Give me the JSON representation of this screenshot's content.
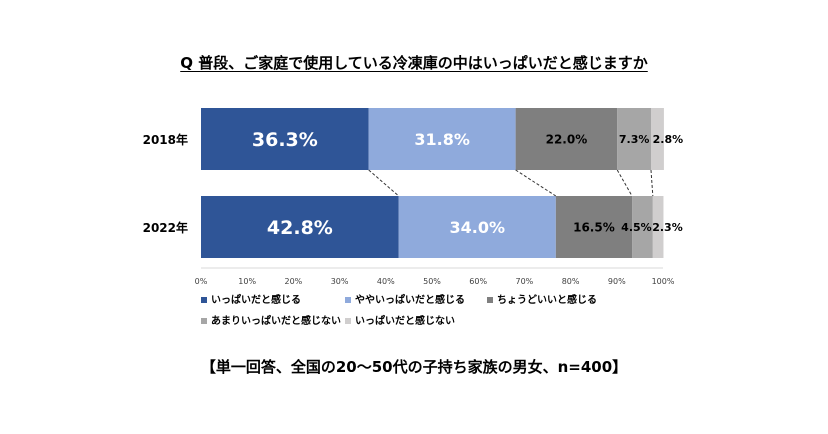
{
  "chart_data": {
    "type": "bar",
    "orientation": "horizontal",
    "stacked": true,
    "title": "Q 普段、ご家庭で使用している冷凍庫の中はいっぱいだと感じますか",
    "categories": [
      "2018年",
      "2022年"
    ],
    "series": [
      {
        "name": "いっぱいだと感じる",
        "values": [
          36.3,
          42.8
        ],
        "color": "#2f5597",
        "labels": [
          "36.3%",
          "42.8%"
        ]
      },
      {
        "name": "ややいっぱいだと感じる",
        "values": [
          31.8,
          34.0
        ],
        "color": "#8faadc",
        "labels": [
          "31.8%",
          "34.0%"
        ]
      },
      {
        "name": "ちょうどいいと感じる",
        "values": [
          22.0,
          16.5
        ],
        "color": "#7f7f7f",
        "labels": [
          "22.0%",
          "16.5%"
        ]
      },
      {
        "name": "あまりいっぱいだと感じない",
        "values": [
          7.3,
          4.5
        ],
        "color": "#a6a6a6",
        "labels": [
          "7.3%",
          "4.5%"
        ]
      },
      {
        "name": "いっぱいだと感じない",
        "values": [
          2.8,
          2.3
        ],
        "color": "#d0cece",
        "labels": [
          "2.8%",
          "2.3%"
        ]
      }
    ],
    "xlim": [
      0,
      100
    ],
    "xticks": [
      "0%",
      "10%",
      "20%",
      "30%",
      "40%",
      "50%",
      "60%",
      "70%",
      "80%",
      "90%",
      "100%"
    ],
    "legend_position": "bottom",
    "grid": false
  },
  "footer": {
    "note": "【単一回答、全国の20～50代の子持ち家族の男女、n=400】"
  }
}
